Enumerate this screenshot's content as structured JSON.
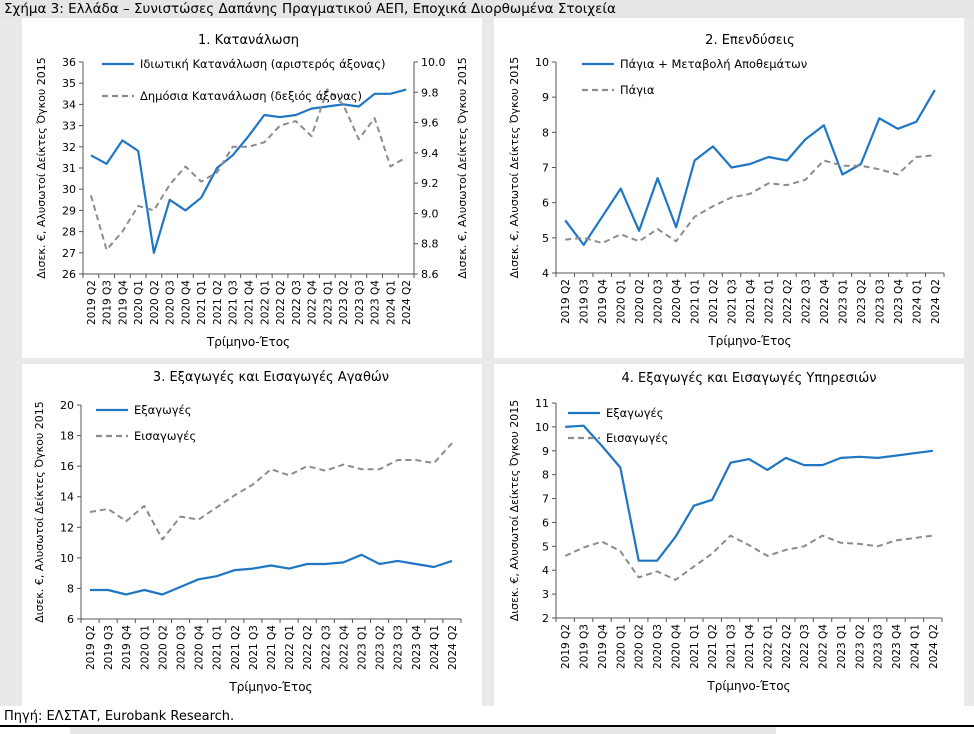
{
  "figure": {
    "title": "Σχήμα 3: Ελλάδα – Συνιστώσες Δαπάνης Πραγματικού ΑΕΠ, Εποχικά Διορθωμένα Στοιχεία",
    "source": "Πηγή: ΕΛΣΤΑΤ, Eurobank Research."
  },
  "colors": {
    "solid": "#1f77c4",
    "dashed": "#8c8c8c",
    "background": "#e9e9e9"
  },
  "chart_data": [
    {
      "id": "c1",
      "type": "line",
      "title": "1. Κατανάλωση",
      "xlabel": "Τρίμηνο-Έτος",
      "ylabel": "Δισεκ. €, Αλυσωτοί Δείκτες Όγκου 2015",
      "y2label": "Δισεκ. €, Αλυσωτοί Δείκτες Όγκου 2015",
      "categories": [
        "2019 Q2",
        "2019 Q3",
        "2019 Q4",
        "2020 Q1",
        "2020 Q2",
        "2020 Q3",
        "2020 Q4",
        "2021 Q1",
        "2021 Q2",
        "2021 Q3",
        "2021 Q4",
        "2022 Q1",
        "2022 Q2",
        "2022 Q3",
        "2022 Q4",
        "2023 Q1",
        "2023 Q2",
        "2023 Q3",
        "2023 Q4",
        "2024 Q1",
        "2024 Q2"
      ],
      "tick_labels": [
        "2019 Q2",
        "2019 Q3",
        "2019 Q4",
        "2020 Q1",
        "2020 Q2",
        "2020 Q3",
        "2020 Q4",
        "2021 Q1",
        "2021 Q2",
        "2021 Q3",
        "2021 Q4",
        "2022 Q1",
        "2022 Q2",
        "2022 Q3",
        "2022 Q4",
        "2023 Q1",
        "2023 Q2",
        "2023 Q3",
        "2023 Q4",
        "2024 Q1",
        "2024 Q2"
      ],
      "ylim": [
        26,
        36
      ],
      "yticks": [
        26,
        27,
        28,
        29,
        30,
        31,
        32,
        33,
        34,
        35,
        36
      ],
      "y2lim": [
        8.6,
        10.0
      ],
      "y2ticks": [
        "8.6",
        "8.8",
        "9.0",
        "9.2",
        "9.4",
        "9.6",
        "9.8",
        "10.0"
      ],
      "legend": "top-left",
      "series": [
        {
          "name": "Ιδιωτική Κατανάλωση (αριστερός άξονας)",
          "style": "solid",
          "axis": "left",
          "values": [
            31.6,
            31.2,
            32.3,
            31.8,
            27.0,
            29.5,
            29.0,
            29.6,
            31.0,
            31.6,
            32.5,
            33.5,
            33.4,
            33.5,
            33.8,
            33.9,
            34.0,
            33.9,
            34.5,
            34.5,
            34.7
          ]
        },
        {
          "name": "Δημόσια Κατανάλωση (δεξιός άξονας)",
          "style": "dashed",
          "axis": "right",
          "values": [
            9.12,
            8.76,
            8.88,
            9.05,
            9.02,
            9.19,
            9.31,
            9.21,
            9.27,
            9.44,
            9.44,
            9.47,
            9.58,
            9.61,
            9.51,
            9.82,
            9.72,
            9.49,
            9.63,
            9.31,
            9.37
          ]
        }
      ]
    },
    {
      "id": "c2",
      "type": "line",
      "title": "2. Επενδύσεις",
      "xlabel": "Τρίμηνο-Έτος",
      "ylabel": "Δισεκ. €, Αλυσωτοί Δείκτες Όγκου 2015",
      "categories": [
        "2019 Q2",
        "2019 Q3",
        "2019 Q4",
        "2020 Q1",
        "2020 Q2",
        "2020 Q3",
        "2020 Q4",
        "2021 Q1",
        "2021 Q2",
        "2021 Q3",
        "2021 Q4",
        "2022 Q1",
        "2022 Q2",
        "2022 Q3",
        "2022 Q4",
        "2023 Q1",
        "2023 Q2",
        "2023 Q3",
        "2023 Q4",
        "2024 Q1",
        "2024 Q2"
      ],
      "tick_labels": [
        "2019 Q2",
        "2019 Q3",
        "2019 Q4",
        "2020 Q1",
        "2020 Q2",
        "2020 Q3",
        "2020 Q4",
        "2021 Q1",
        "2021 Q2",
        "2021 Q3",
        "2021 Q4",
        "2022 Q1",
        "2022 Q2",
        "2022 Q3",
        "2022 Q4",
        "2023 Q1",
        "2023 Q2",
        "2023 Q3",
        "2023 Q4",
        "2024 Q1",
        "2024 Q2"
      ],
      "ylim": [
        4,
        10
      ],
      "yticks": [
        4,
        5,
        6,
        7,
        8,
        9,
        10
      ],
      "legend": "top-left",
      "series": [
        {
          "name": "Πάγια + Μεταβολή Αποθεμάτων",
          "style": "solid",
          "values": [
            5.5,
            4.8,
            5.6,
            6.4,
            5.2,
            6.7,
            5.3,
            7.2,
            7.6,
            7.0,
            7.1,
            7.3,
            7.2,
            7.8,
            8.2,
            6.8,
            7.1,
            8.4,
            8.1,
            8.3,
            9.2
          ]
        },
        {
          "name": "Πάγια",
          "style": "dashed",
          "values": [
            4.95,
            5.0,
            4.85,
            5.1,
            4.9,
            5.25,
            4.9,
            5.6,
            5.9,
            6.15,
            6.25,
            6.55,
            6.5,
            6.65,
            7.2,
            7.05,
            7.05,
            6.95,
            6.8,
            7.3,
            7.35
          ]
        }
      ]
    },
    {
      "id": "c3",
      "type": "line",
      "title": "3. Εξαγωγές και Εισαγωγές Αγαθών",
      "xlabel": "Τρίμηνο-Έτος",
      "ylabel": "Δισεκ. €, Αλυσωτοί Δείκτες Όγκου 2015",
      "categories": [
        "2019 Q2",
        "2019 Q3",
        "2019 Q4",
        "2020 Q1",
        "2020 Q2",
        "2020 Q3",
        "2020 Q4",
        "2021 Q1",
        "2021 Q2",
        "2021 Q3",
        "2021 Q4",
        "2022 Q1",
        "2022 Q2",
        "2022 Q3",
        "2022 Q4",
        "2023 Q1",
        "2023 Q2",
        "2023 Q3",
        "2023 Q4",
        "2024 Q1",
        "2024 Q2"
      ],
      "tick_labels": [
        "2019 Q2",
        "2019 Q3",
        "2019 Q4",
        "2020 Q1",
        "2020 Q2",
        "2020 Q3",
        "2020 Q4",
        "2021 Q1",
        "2021 Q2",
        "2021 Q3",
        "2021 Q4",
        "2022 Q1",
        "2022 Q2",
        "2022 Q3",
        "2022 Q4",
        "2023 Q1",
        "2023 Q2",
        "2023 Q3",
        "2023 Q4",
        "2024 Q1",
        "2024 Q2"
      ],
      "ylim": [
        6,
        20
      ],
      "yticks": [
        6,
        8,
        10,
        12,
        14,
        16,
        18,
        20
      ],
      "legend": "top-left",
      "series": [
        {
          "name": "Εξαγωγές",
          "style": "solid",
          "values": [
            7.9,
            7.9,
            7.6,
            7.9,
            7.6,
            8.1,
            8.6,
            8.8,
            9.2,
            9.3,
            9.5,
            9.3,
            9.6,
            9.6,
            9.7,
            10.2,
            9.6,
            9.8,
            9.6,
            9.4,
            9.8
          ]
        },
        {
          "name": "Εισαγωγές",
          "style": "dashed",
          "values": [
            13.0,
            13.2,
            12.4,
            13.4,
            11.2,
            12.7,
            12.5,
            13.3,
            14.1,
            14.8,
            15.8,
            15.4,
            16.0,
            15.7,
            16.1,
            15.8,
            15.8,
            16.4,
            16.4,
            16.2,
            17.5
          ]
        }
      ]
    },
    {
      "id": "c4",
      "type": "line",
      "title": "4. Εξαγωγές και Εισαγωγές Υπηρεσιών",
      "xlabel": "Τρίμηνο-Έτος",
      "ylabel": "Δισεκ. €, Αλυσωτοί Δείκτες Όγκου 2015",
      "categories": [
        "2019 Q2",
        "2019 Q3",
        "2019 Q4",
        "2020 Q1",
        "2020 Q2",
        "2020 Q3",
        "2020 Q4",
        "2021 Q1",
        "2021 Q2",
        "2021 Q3",
        "2021 Q4",
        "2022 Q1",
        "2022 Q2",
        "2022 Q3",
        "2022 Q4",
        "2023 Q1",
        "2023 Q2",
        "2023 Q3",
        "2023 Q4",
        "2024 Q1",
        "2024 Q2"
      ],
      "tick_labels": [
        "2019 Q2",
        "2019 Q3",
        "2019 Q4",
        "2020 Q1",
        "2020 Q2",
        "2020 Q3",
        "2020 Q4",
        "2021 Q1",
        "2021 Q2",
        "2021 Q3",
        "2021 Q4",
        "2022 Q1",
        "2022 Q2",
        "2022 Q3",
        "2022 Q4",
        "2023 Q1",
        "2023 Q2",
        "2023 Q3",
        "2023 Q4",
        "2024 Q1",
        "2024 Q2"
      ],
      "ylim": [
        2,
        11
      ],
      "yticks": [
        2,
        3,
        4,
        5,
        6,
        7,
        8,
        9,
        10,
        11
      ],
      "legend": "top-left",
      "series": [
        {
          "name": "Εξαγωγές",
          "style": "solid",
          "values": [
            10.0,
            10.05,
            9.2,
            8.3,
            4.4,
            4.4,
            5.4,
            6.7,
            6.95,
            8.5,
            8.65,
            8.2,
            8.7,
            8.4,
            8.4,
            8.7,
            8.75,
            8.7,
            8.8,
            8.9,
            9.0
          ]
        },
        {
          "name": "Εισαγωγές",
          "style": "dashed",
          "values": [
            4.6,
            4.95,
            5.2,
            4.8,
            3.7,
            3.95,
            3.6,
            4.15,
            4.7,
            5.45,
            5.05,
            4.6,
            4.85,
            5.0,
            5.45,
            5.15,
            5.1,
            5.0,
            5.25,
            5.35,
            5.45
          ]
        }
      ]
    }
  ]
}
